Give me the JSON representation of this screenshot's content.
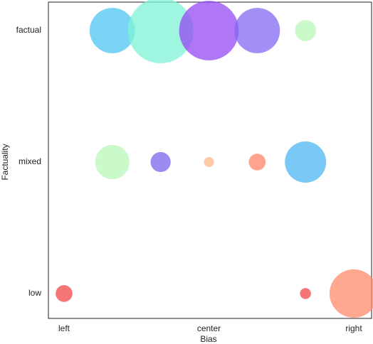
{
  "chart_data": {
    "type": "bubble",
    "xlabel": "Bias",
    "ylabel": "Factuality",
    "categories": [
      "left",
      null,
      null,
      "center",
      null,
      null,
      "right"
    ],
    "series": [
      {
        "name": "low",
        "sizes": [
          14,
          null,
          null,
          null,
          null,
          6,
          116
        ],
        "colors": [
          "#f04848",
          null,
          null,
          null,
          null,
          "#f04848",
          "#ff8a6a"
        ]
      },
      {
        "name": "mixed",
        "sizes": [
          null,
          58,
          20,
          5,
          14,
          84,
          null
        ],
        "colors": [
          null,
          "#b8f7b8",
          "#7a66ee",
          "#ffb88a",
          "#ff8466",
          "#4cb6f2",
          null
        ]
      },
      {
        "name": "factual",
        "sizes": [
          null,
          102,
          212,
          176,
          102,
          22,
          null
        ],
        "colors": [
          null,
          "#4ec6f2",
          "#7ff3d6",
          "#9448f2",
          "#8468f2",
          "#b8f7b8",
          null
        ]
      }
    ]
  }
}
